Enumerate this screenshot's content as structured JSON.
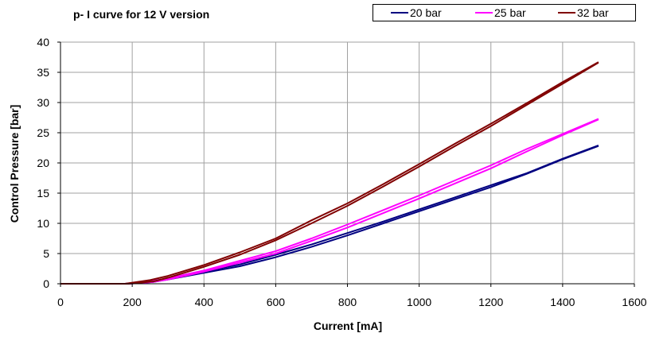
{
  "chart_data": {
    "type": "line",
    "title": "p- I curve for 12 V version",
    "xlabel": "Current [mA]",
    "ylabel": "Control  Pressure [bar]",
    "xlim": [
      0,
      1600
    ],
    "ylim": [
      0,
      40
    ],
    "xticks": [
      0,
      200,
      400,
      600,
      800,
      1000,
      1200,
      1400,
      1600
    ],
    "yticks": [
      0,
      5,
      10,
      15,
      20,
      25,
      30,
      35,
      40
    ],
    "grid": true,
    "legend_position": "top-right",
    "series": [
      {
        "name": "20 bar",
        "color": "#000080",
        "upper": [
          [
            0,
            0
          ],
          [
            180,
            0
          ],
          [
            250,
            0.4
          ],
          [
            300,
            0.9
          ],
          [
            400,
            2.0
          ],
          [
            500,
            3.2
          ],
          [
            600,
            4.8
          ],
          [
            700,
            6.5
          ],
          [
            800,
            8.4
          ],
          [
            900,
            10.3
          ],
          [
            1000,
            12.3
          ],
          [
            1100,
            14.3
          ],
          [
            1200,
            16.3
          ],
          [
            1300,
            18.3
          ],
          [
            1400,
            20.7
          ],
          [
            1500,
            22.9
          ]
        ],
        "lower": [
          [
            0,
            0
          ],
          [
            190,
            0
          ],
          [
            260,
            0.3
          ],
          [
            300,
            0.7
          ],
          [
            400,
            1.8
          ],
          [
            500,
            2.9
          ],
          [
            600,
            4.4
          ],
          [
            700,
            6.1
          ],
          [
            800,
            8.0
          ],
          [
            900,
            10.0
          ],
          [
            1000,
            12.0
          ],
          [
            1100,
            14.0
          ],
          [
            1200,
            16.0
          ],
          [
            1300,
            18.2
          ],
          [
            1400,
            20.6
          ],
          [
            1500,
            22.8
          ]
        ]
      },
      {
        "name": "25 bar",
        "color": "#FF00FF",
        "upper": [
          [
            0,
            0
          ],
          [
            180,
            0
          ],
          [
            250,
            0.4
          ],
          [
            300,
            0.9
          ],
          [
            400,
            2.2
          ],
          [
            500,
            3.8
          ],
          [
            600,
            5.4
          ],
          [
            700,
            7.5
          ],
          [
            800,
            9.8
          ],
          [
            900,
            12.2
          ],
          [
            1000,
            14.6
          ],
          [
            1100,
            17.1
          ],
          [
            1200,
            19.6
          ],
          [
            1300,
            22.3
          ],
          [
            1400,
            24.8
          ],
          [
            1500,
            27.3
          ]
        ],
        "lower": [
          [
            0,
            0
          ],
          [
            190,
            0
          ],
          [
            260,
            0.3
          ],
          [
            300,
            0.7
          ],
          [
            400,
            2.0
          ],
          [
            500,
            3.5
          ],
          [
            600,
            5.0
          ],
          [
            700,
            7.1
          ],
          [
            800,
            9.3
          ],
          [
            900,
            11.7
          ],
          [
            1000,
            14.1
          ],
          [
            1100,
            16.6
          ],
          [
            1200,
            19.1
          ],
          [
            1300,
            21.9
          ],
          [
            1400,
            24.6
          ],
          [
            1500,
            27.2
          ]
        ]
      },
      {
        "name": "32 bar",
        "color": "#800000",
        "upper": [
          [
            0,
            0
          ],
          [
            180,
            0
          ],
          [
            250,
            0.6
          ],
          [
            300,
            1.3
          ],
          [
            400,
            3.1
          ],
          [
            500,
            5.2
          ],
          [
            600,
            7.5
          ],
          [
            700,
            10.5
          ],
          [
            800,
            13.3
          ],
          [
            900,
            16.5
          ],
          [
            1000,
            19.8
          ],
          [
            1100,
            23.2
          ],
          [
            1200,
            26.5
          ],
          [
            1300,
            29.9
          ],
          [
            1400,
            33.4
          ],
          [
            1500,
            36.7
          ]
        ],
        "lower": [
          [
            0,
            0
          ],
          [
            190,
            0
          ],
          [
            260,
            0.4
          ],
          [
            300,
            1.0
          ],
          [
            400,
            2.8
          ],
          [
            500,
            4.8
          ],
          [
            600,
            7.2
          ],
          [
            700,
            10.0
          ],
          [
            800,
            12.9
          ],
          [
            900,
            16.1
          ],
          [
            1000,
            19.4
          ],
          [
            1100,
            22.8
          ],
          [
            1200,
            26.1
          ],
          [
            1300,
            29.6
          ],
          [
            1400,
            33.1
          ],
          [
            1500,
            36.6
          ]
        ]
      }
    ]
  }
}
